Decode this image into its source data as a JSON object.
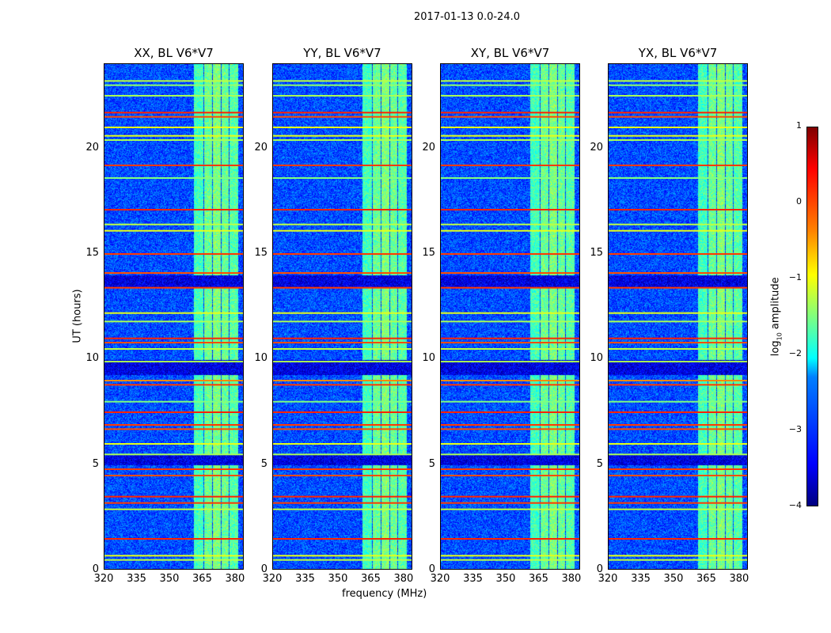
{
  "chart_data": {
    "type": "heatmap",
    "title": "2017-01-13 0.0-24.0",
    "xlabel": "frequency (MHz)",
    "ylabel": "UT (hours)",
    "xlim": [
      320,
      384
    ],
    "ylim": [
      0,
      24
    ],
    "xticks": [
      "320",
      "335",
      "350",
      "365",
      "380"
    ],
    "yticks": [
      "0",
      "5",
      "10",
      "15",
      "20"
    ],
    "panels": [
      {
        "title": "XX, BL V6*V7"
      },
      {
        "title": "YY, BL V6*V7"
      },
      {
        "title": "XY, BL V6*V7"
      },
      {
        "title": "YX, BL V6*V7"
      }
    ],
    "colorbar": {
      "label": "log10 amplitude",
      "label_main": "log",
      "label_sub": "10",
      "label_rest": " amplitude",
      "range": [
        -4,
        1
      ],
      "ticks": [
        "1",
        "0",
        "−1",
        "−2",
        "−3",
        "−4"
      ],
      "colormap": "jet"
    },
    "background_log_amplitude": -3.0,
    "freq_blocks_mhz": [
      [
        360.5,
        365,
        -1.8
      ],
      [
        365.5,
        369,
        -1.6
      ],
      [
        369.5,
        373,
        -1.5
      ],
      [
        373.5,
        376.5,
        -1.6
      ],
      [
        377,
        381,
        -1.7
      ]
    ],
    "time_bands_hours": [
      [
        23.2,
        -1.2
      ],
      [
        23.0,
        -1.4
      ],
      [
        22.5,
        -1.3
      ],
      [
        21.7,
        0.2
      ],
      [
        21.5,
        0.0
      ],
      [
        21.0,
        -1.0
      ],
      [
        20.6,
        -1.0
      ],
      [
        20.4,
        -1.3
      ],
      [
        19.2,
        0.1
      ],
      [
        18.6,
        -1.5
      ],
      [
        17.1,
        0.2
      ],
      [
        16.4,
        -1.2
      ],
      [
        16.1,
        -1.0
      ],
      [
        15.0,
        0.1
      ],
      [
        14.1,
        0.0
      ],
      [
        13.4,
        0.1
      ],
      [
        12.2,
        -1.0
      ],
      [
        11.8,
        -1.3
      ],
      [
        11.0,
        0.2
      ],
      [
        10.8,
        0.0
      ],
      [
        10.5,
        -1.2
      ],
      [
        9.9,
        -1.3
      ],
      [
        9.0,
        -0.3
      ],
      [
        8.8,
        0.1
      ],
      [
        8.0,
        -1.5
      ],
      [
        7.5,
        0.2
      ],
      [
        6.9,
        0.1
      ],
      [
        6.7,
        0.0
      ],
      [
        6.0,
        -1.0
      ],
      [
        5.5,
        -1.3
      ],
      [
        4.8,
        0.1
      ],
      [
        4.5,
        0.0
      ],
      [
        3.5,
        0.2
      ],
      [
        3.2,
        0.1
      ],
      [
        2.9,
        -1.2
      ],
      [
        1.5,
        0.2
      ],
      [
        0.7,
        -1.0
      ],
      [
        0.5,
        -1.2
      ]
    ],
    "dark_bands_hours": [
      [
        13.4,
        14.0
      ],
      [
        9.3,
        10.0
      ],
      [
        5.0,
        5.5
      ]
    ]
  }
}
